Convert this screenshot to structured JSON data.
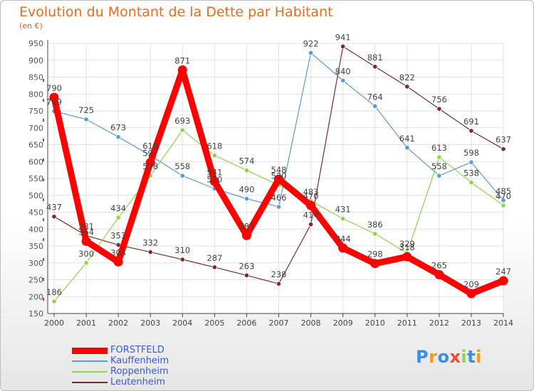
{
  "header": {
    "title": "Evolution du Montant de la Dette par Habitant",
    "subtitle": "(en €)"
  },
  "chart_data": {
    "type": "line",
    "title": "Evolution du Montant de la Dette par Habitant",
    "subtitle": "(en €)",
    "x": [
      "2000",
      "2001",
      "2002",
      "2003",
      "2004",
      "2005",
      "2006",
      "2007",
      "2008",
      "2009",
      "2010",
      "2011",
      "2012",
      "2013",
      "2014"
    ],
    "ylim": [
      150,
      950
    ],
    "yticks": [
      150,
      200,
      250,
      300,
      350,
      400,
      450,
      500,
      550,
      600,
      650,
      700,
      750,
      800,
      850,
      900,
      950
    ],
    "grid": true,
    "legend_position": "bottom-left",
    "series": [
      {
        "name": "FORSTFELD",
        "color": "#ff0000",
        "values": [
          790,
          364,
          303,
          597,
          871,
          541,
          381,
          548,
          470,
          344,
          298,
          318,
          265,
          209,
          247
        ]
      },
      {
        "name": "Kauffenheim",
        "color": "#5b9bd5",
        "values": [
          749,
          725,
          673,
          618,
          558,
          520,
          490,
          466,
          922,
          840,
          764,
          641,
          558,
          598,
          485
        ]
      },
      {
        "name": "Roppenheim",
        "color": "#8fd44b",
        "values": [
          186,
          300,
          434,
          558,
          693,
          618,
          574,
          530,
          483,
          431,
          386,
          329,
          613,
          538,
          470
        ]
      },
      {
        "name": "Leutenheim",
        "color": "#7a2a2a",
        "values": [
          437,
          381,
          353,
          332,
          310,
          287,
          263,
          238,
          414,
          941,
          881,
          822,
          756,
          691,
          637
        ]
      }
    ]
  },
  "logo": {
    "letters": [
      "P",
      "r",
      "o",
      "x",
      "i",
      "t",
      "i"
    ],
    "colors": [
      "#3a8ee6",
      "#f39c12",
      "#3a8ee6",
      "#e74c3c",
      "#8fd44b",
      "#3a8ee6",
      "#f39c12"
    ]
  }
}
